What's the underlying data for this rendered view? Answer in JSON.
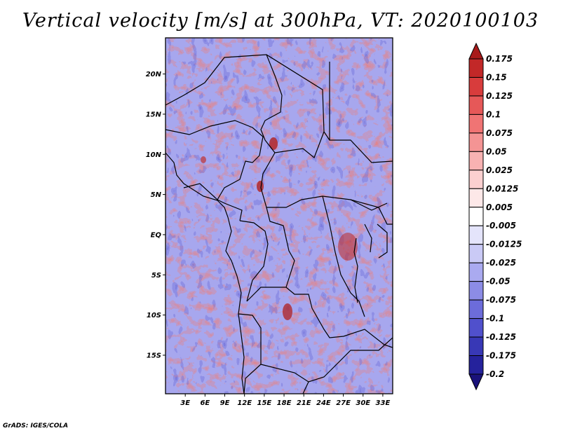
{
  "title": "Vertical velocity [m/s] at 300hPa, VT: 2020100103",
  "credit": "GrADS: IGES/COLA",
  "map": {
    "lat_labels": [
      "20N",
      "15N",
      "10N",
      "5N",
      "EQ",
      "5S",
      "10S",
      "15S"
    ],
    "lon_labels": [
      "3E",
      "6E",
      "9E",
      "12E",
      "15E",
      "18E",
      "21E",
      "24E",
      "27E",
      "30E",
      "33E"
    ],
    "lat_values": [
      20,
      15,
      10,
      5,
      0,
      -5,
      -10,
      -15
    ],
    "lon_values": [
      3,
      6,
      9,
      12,
      15,
      18,
      21,
      24,
      27,
      30,
      33
    ],
    "lon_range": [
      0,
      34.5
    ],
    "lat_range": [
      -19.8,
      24.5
    ]
  },
  "colorbar": {
    "labels": [
      "0.175",
      "0.15",
      "0.125",
      "0.1",
      "0.075",
      "0.05",
      "0.025",
      "0.0125",
      "0.005",
      "-0.005",
      "-0.0125",
      "-0.025",
      "-0.05",
      "-0.075",
      "-0.1",
      "-0.125",
      "-0.175",
      "-0.2"
    ],
    "colors": [
      "#a81a1a",
      "#c22828",
      "#d83c3c",
      "#e65858",
      "#f07474",
      "#f49494",
      "#f8b2b2",
      "#fbd0d0",
      "#fde8e8",
      "#ffffff",
      "#e4e4fb",
      "#cacaf6",
      "#aaaaf0",
      "#8c8ce6",
      "#6c6cda",
      "#5050cc",
      "#3838b6",
      "#25229c",
      "#1a127a"
    ]
  }
}
